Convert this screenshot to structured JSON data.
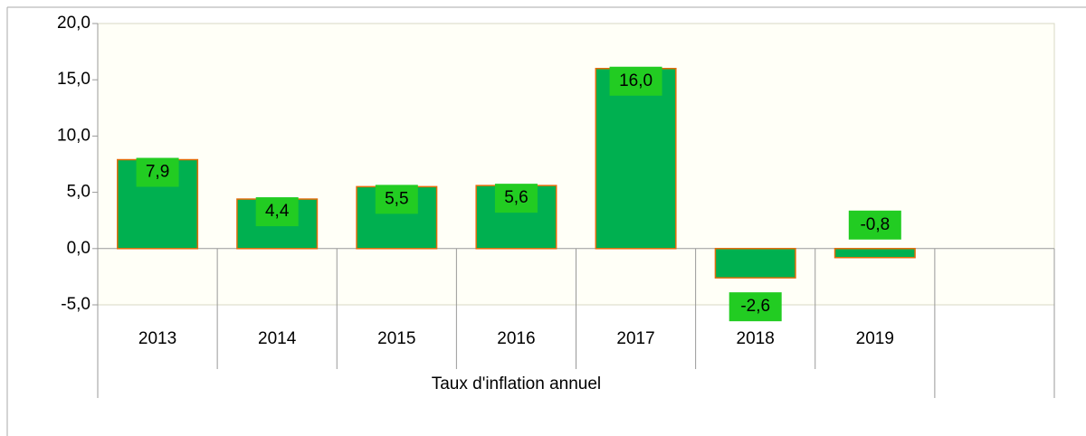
{
  "chart_data": {
    "type": "bar",
    "categories": [
      "2013",
      "2014",
      "2015",
      "2016",
      "2017",
      "2018",
      "2019",
      null
    ],
    "values": [
      7.9,
      4.4,
      5.5,
      5.6,
      16.0,
      -2.6,
      -0.8,
      null
    ],
    "value_labels": [
      "7,9",
      "4,4",
      "5,5",
      "5,6",
      "16,0",
      "-2,6",
      "-0,8",
      null
    ],
    "group_label": "Taux d'inflation annuel",
    "color": "#00b050",
    "edge_color": "#e46c0a",
    "label_box_color": "#22cc22",
    "ylim": [
      -5,
      20
    ],
    "yticks": [
      {
        "value": -5,
        "label": "-5,0"
      },
      {
        "value": 0,
        "label": "0,0"
      },
      {
        "value": 5,
        "label": "5,0"
      },
      {
        "value": 10,
        "label": "10,0"
      },
      {
        "value": 15,
        "label": "15,0"
      },
      {
        "value": 20,
        "label": "20,0"
      }
    ],
    "grid": false
  }
}
